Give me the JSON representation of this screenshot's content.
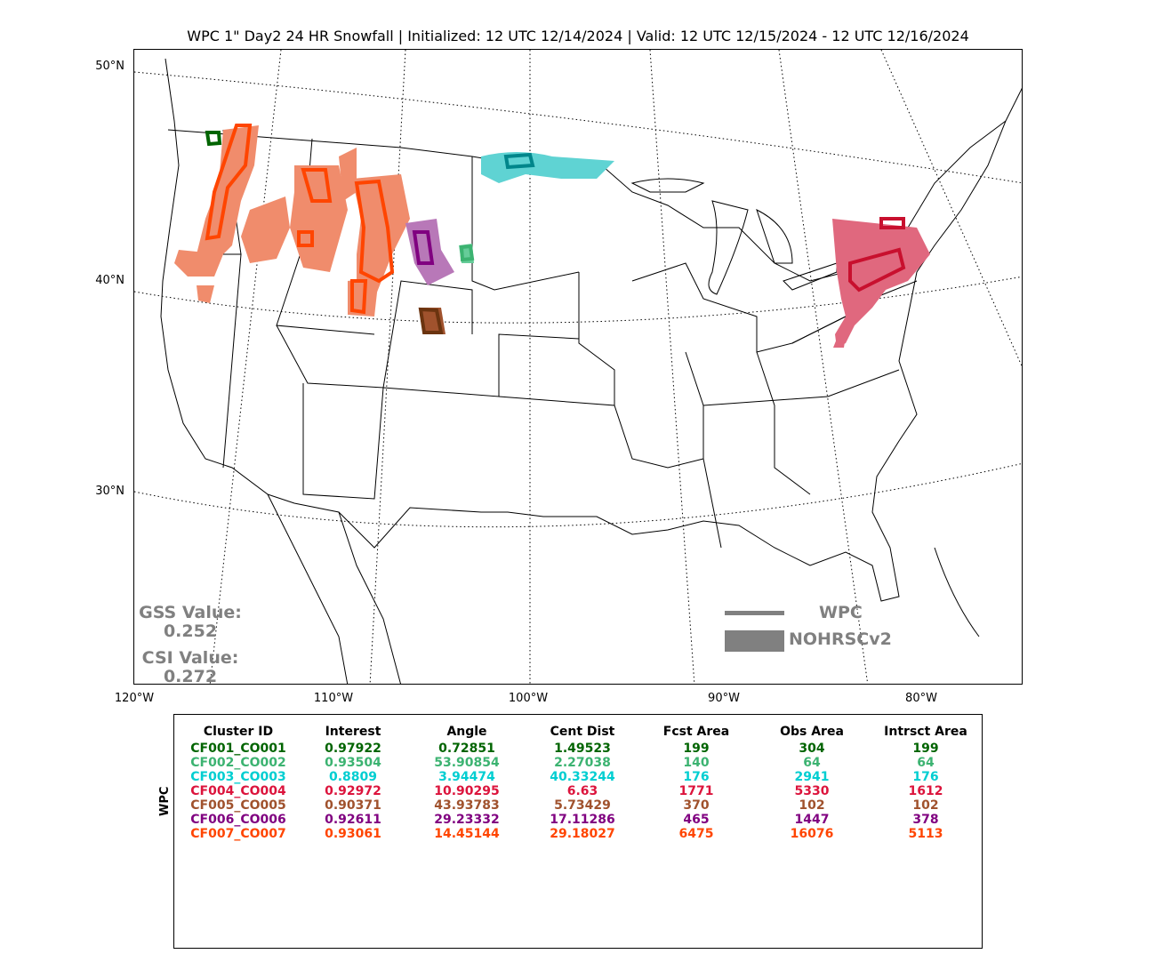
{
  "title": "WPC 1\" Day2 24 HR Snowfall | Initialized: 12 UTC 12/14/2024 | Valid: 12 UTC 12/15/2024 - 12 UTC 12/16/2024",
  "map": {
    "lat_labels": [
      "50°N",
      "40°N",
      "30°N"
    ],
    "lon_labels": [
      "120°W",
      "110°W",
      "100°W",
      "90°W",
      "80°W"
    ],
    "gss_label": "GSS Value:",
    "gss_value": "0.252",
    "csi_label": "CSI Value:",
    "csi_value": "0.272",
    "legend": [
      {
        "label": "WPC",
        "style": "line",
        "color": "#808080"
      },
      {
        "label": "NOHRSCv2",
        "style": "fill",
        "color": "#808080"
      }
    ]
  },
  "table": {
    "ylabel": "WPC",
    "headers": [
      "Cluster ID",
      "Interest",
      "Angle",
      "Cent Dist",
      "Fcst Area",
      "Obs Area",
      "Intrsct Area"
    ],
    "rows": [
      {
        "color": "#006400",
        "cells": [
          "CF001_CO001",
          "0.97922",
          "0.72851",
          "1.49523",
          "199",
          "304",
          "199"
        ]
      },
      {
        "color": "#3cb371",
        "cells": [
          "CF002_CO002",
          "0.93504",
          "53.90854",
          "2.27038",
          "140",
          "64",
          "64"
        ]
      },
      {
        "color": "#00ced1",
        "cells": [
          "CF003_CO003",
          "0.8809",
          "3.94474",
          "40.33244",
          "176",
          "2941",
          "176"
        ]
      },
      {
        "color": "#dc143c",
        "cells": [
          "CF004_CO004",
          "0.92972",
          "10.90295",
          "6.63",
          "1771",
          "5330",
          "1612"
        ]
      },
      {
        "color": "#a0522d",
        "cells": [
          "CF005_CO005",
          "0.90371",
          "43.93783",
          "5.73429",
          "370",
          "102",
          "102"
        ]
      },
      {
        "color": "#800080",
        "cells": [
          "CF006_CO006",
          "0.92611",
          "29.23332",
          "17.11286",
          "465",
          "1447",
          "378"
        ]
      },
      {
        "color": "#ff4500",
        "cells": [
          "CF007_CO007",
          "0.93061",
          "14.45144",
          "29.18027",
          "6475",
          "16076",
          "5113"
        ]
      }
    ]
  },
  "colors": {
    "obs_orange": "#f08c6c",
    "obs_cyan": "#5fd3d3",
    "obs_pink": "#e0687e",
    "obs_purple": "#b878b8",
    "obs_green": "#66cc99",
    "obs_brown": "#a0522d"
  }
}
